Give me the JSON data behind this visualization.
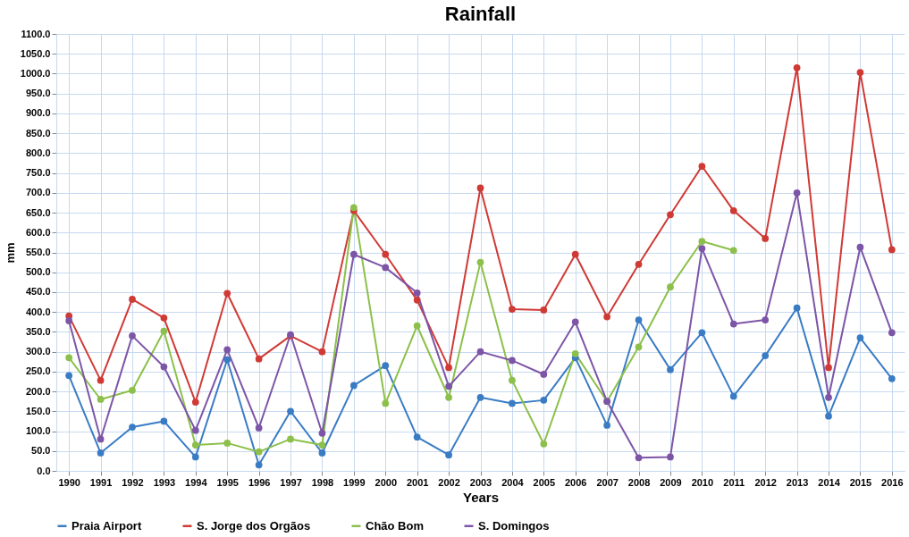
{
  "chart_data": {
    "type": "line",
    "title": "Rainfall",
    "xlabel": "Years",
    "ylabel": "mm",
    "categories": [
      "1990",
      "1991",
      "1992",
      "1993",
      "1994",
      "1995",
      "1996",
      "1997",
      "1998",
      "1999",
      "2000",
      "2001",
      "2002",
      "2003",
      "2004",
      "2005",
      "2006",
      "2007",
      "2008",
      "2009",
      "2010",
      "2011",
      "2012",
      "2013",
      "2014",
      "2015",
      "2016"
    ],
    "series": [
      {
        "name": "Praia Airport",
        "color": "#3a7cc4",
        "values": [
          240,
          45,
          110,
          125,
          35,
          280,
          15,
          150,
          45,
          215,
          265,
          85,
          40,
          185,
          170,
          178,
          285,
          115,
          380,
          255,
          348,
          188,
          290,
          410,
          138,
          335,
          232
        ]
      },
      {
        "name": "S. Jorge dos Orgãos",
        "color": "#d03a35",
        "values": [
          390,
          228,
          432,
          385,
          173,
          447,
          282,
          340,
          300,
          655,
          545,
          430,
          260,
          712,
          407,
          405,
          545,
          388,
          520,
          645,
          767,
          655,
          585,
          1015,
          260,
          1003,
          557
        ]
      },
      {
        "name": "Chão Bom",
        "color": "#8cc04a",
        "values": [
          285,
          180,
          203,
          352,
          65,
          70,
          48,
          80,
          65,
          663,
          170,
          365,
          185,
          525,
          228,
          68,
          295,
          175,
          312,
          463,
          578,
          555,
          null,
          null,
          null,
          null,
          null
        ]
      },
      {
        "name": "S. Domingos",
        "color": "#7d55a6",
        "values": [
          378,
          80,
          340,
          262,
          102,
          305,
          108,
          343,
          95,
          545,
          512,
          448,
          213,
          300,
          278,
          243,
          375,
          175,
          33,
          35,
          560,
          370,
          380,
          700,
          185,
          563,
          348
        ]
      }
    ],
    "ylim": [
      0,
      1100
    ],
    "yticks": [
      {
        "value": 0,
        "label": "0.0"
      },
      {
        "value": 50,
        "label": "50.0"
      },
      {
        "value": 100,
        "label": "100.0"
      },
      {
        "value": 150,
        "label": "150.0"
      },
      {
        "value": 200,
        "label": "200.0"
      },
      {
        "value": 250,
        "label": "250.0"
      },
      {
        "value": 300,
        "label": "300.0"
      },
      {
        "value": 350,
        "label": "350.0"
      },
      {
        "value": 400,
        "label": "400.0"
      },
      {
        "value": 450,
        "label": "450.0"
      },
      {
        "value": 500,
        "label": "500.0"
      },
      {
        "value": 550,
        "label": "550.0"
      },
      {
        "value": 600,
        "label": "600.0"
      },
      {
        "value": 650,
        "label": "650.0"
      },
      {
        "value": 700,
        "label": "700.0"
      },
      {
        "value": 750,
        "label": "750.0"
      },
      {
        "value": 800,
        "label": "800.0"
      },
      {
        "value": 850,
        "label": "850.0"
      },
      {
        "value": 900,
        "label": "900.0"
      },
      {
        "value": 950,
        "label": "950.0"
      },
      {
        "value": 1000,
        "label": "1000.0"
      },
      {
        "value": 1050,
        "label": "1050.0"
      },
      {
        "value": 1100,
        "label": "1100.0"
      }
    ],
    "grid": true,
    "legend": "bottom",
    "marker": "circle",
    "line_style": "solid"
  }
}
